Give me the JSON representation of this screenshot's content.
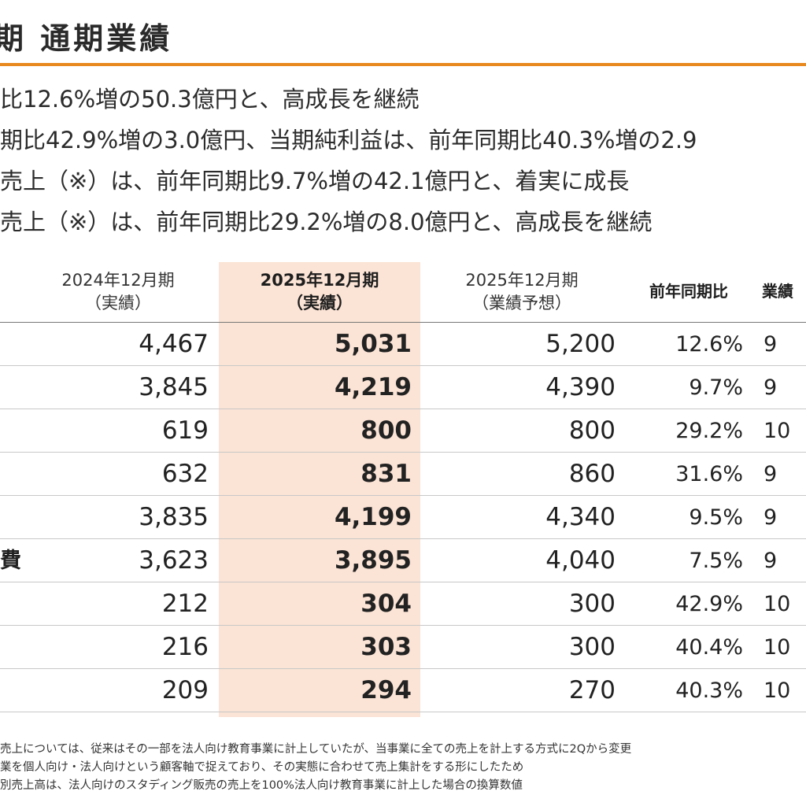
{
  "title": "期 通期業績",
  "bullets": [
    "比12.6%増の50.3億円と、高成長を継続",
    "期比42.9%増の3.0億円、当期純利益は、前年同期比40.3%増の2.9",
    "売上（※）は、前年同期比9.7%増の42.1億円と、着実に成長",
    "売上（※）は、前年同期比29.2%増の8.0億円と、高成長を継続"
  ],
  "table": {
    "headers": {
      "prev": [
        "2024年12月期",
        "（実績）"
      ],
      "curr": [
        "2025年12月期",
        "（実績）"
      ],
      "forecast": [
        "2025年12月期",
        "（業績予想）"
      ],
      "yoy": "前年同期比",
      "rate": "業績"
    },
    "rows": [
      {
        "label": "",
        "prev": "4,467",
        "curr": "5,031",
        "forecast": "5,200",
        "yoy": "12.6%",
        "rate": "9"
      },
      {
        "label": "",
        "prev": "3,845",
        "curr": "4,219",
        "forecast": "4,390",
        "yoy": "9.7%",
        "rate": "9"
      },
      {
        "label": "",
        "prev": "619",
        "curr": "800",
        "forecast": "800",
        "yoy": "29.2%",
        "rate": "10"
      },
      {
        "label": "",
        "prev": "632",
        "curr": "831",
        "forecast": "860",
        "yoy": "31.6%",
        "rate": "9"
      },
      {
        "label": "",
        "prev": "3,835",
        "curr": "4,199",
        "forecast": "4,340",
        "yoy": "9.5%",
        "rate": "9"
      },
      {
        "label": "費",
        "prev": "3,623",
        "curr": "3,895",
        "forecast": "4,040",
        "yoy": "7.5%",
        "rate": "9"
      },
      {
        "label": "",
        "prev": "212",
        "curr": "304",
        "forecast": "300",
        "yoy": "42.9%",
        "rate": "10"
      },
      {
        "label": "",
        "prev": "216",
        "curr": "303",
        "forecast": "300",
        "yoy": "40.4%",
        "rate": "10"
      },
      {
        "label": "",
        "prev": "209",
        "curr": "294",
        "forecast": "270",
        "yoy": "40.3%",
        "rate": "10"
      }
    ]
  },
  "notes": [
    "売上については、従来はその一部を法人向け教育事業に計上していたが、当事業に全ての売上を計上する方式に2Qから変更",
    "業を個人向け・法人向けという顧客軸で捉えており、その実態に合わせて売上集計をする形にしたため",
    "別売上高は、法人向けのスタディング販売の売上を100%法人向け教育事業に計上した場合の換算数値"
  ],
  "colors": {
    "accent_rule": "#e8891f",
    "highlight_column": "#fbe3d5"
  }
}
